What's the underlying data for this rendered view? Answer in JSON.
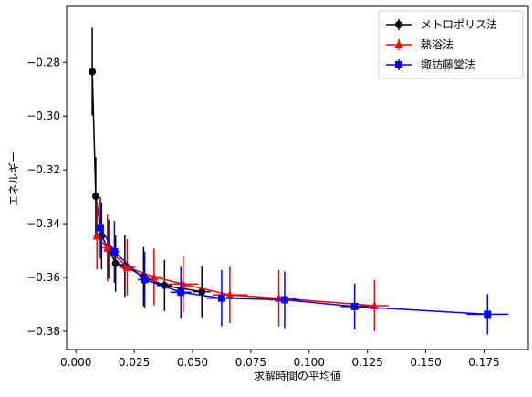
{
  "chart_data": {
    "type": "line",
    "title": "",
    "xlabel": "求解時間の平均値",
    "ylabel": "エネルギー",
    "xlim": [
      -0.004,
      0.194
    ],
    "ylim": [
      -0.3868,
      -0.2592
    ],
    "xticks": [
      0.0,
      0.025,
      0.05,
      0.075,
      0.1,
      0.125,
      0.15,
      0.175
    ],
    "xtick_labels": [
      "0.000",
      "0.025",
      "0.050",
      "0.075",
      "0.100",
      "0.125",
      "0.150",
      "0.175"
    ],
    "yticks": [
      -0.28,
      -0.3,
      -0.32,
      -0.34,
      -0.36,
      -0.38
    ],
    "ytick_labels": [
      "−0.28",
      "−0.30",
      "−0.32",
      "−0.34",
      "−0.36",
      "−0.38"
    ],
    "grid": false,
    "legend_position": "top-right",
    "series": [
      {
        "name": "メトロポリス法",
        "color": "#000000",
        "marker": "circle",
        "x": [
          0.007,
          0.0085,
          0.011,
          0.014,
          0.017,
          0.021,
          0.029,
          0.038,
          0.054
        ],
        "y": [
          -0.2835,
          -0.3298,
          -0.3445,
          -0.3495,
          -0.3548,
          -0.3557,
          -0.3597,
          -0.363,
          -0.3653
        ],
        "yerr": [
          0.0163,
          0.0145,
          0.0125,
          0.011,
          0.0105,
          0.0115,
          0.011,
          0.0095,
          0.0095
        ],
        "xerr": [
          0.0012,
          0.001,
          0.0014,
          0.0015,
          0.0015,
          0.0018,
          0.0022,
          0.0032,
          0.0038
        ]
      },
      {
        "name": "熱浴法",
        "color": "#ff0000",
        "marker": "triangle",
        "x": [
          0.009,
          0.0135,
          0.022,
          0.0335,
          0.046,
          0.066,
          0.087,
          0.128
        ],
        "y": [
          -0.3445,
          -0.349,
          -0.3562,
          -0.3598,
          -0.3625,
          -0.3665,
          -0.3677,
          -0.3705
        ],
        "yerr": [
          0.0125,
          0.0125,
          0.0105,
          0.0105,
          0.0105,
          0.0105,
          0.0105,
          0.0095
        ],
        "xerr": [
          0.0015,
          0.0025,
          0.0035,
          0.0045,
          0.0065,
          0.0075,
          0.0075,
          0.006
        ]
      },
      {
        "name": "諏訪藤堂法",
        "color": "#0000ff",
        "marker": "square",
        "x": [
          0.0105,
          0.0165,
          0.0295,
          0.045,
          0.0625,
          0.0895,
          0.1195,
          0.1765
        ],
        "y": [
          -0.3415,
          -0.3505,
          -0.3608,
          -0.3655,
          -0.3677,
          -0.3683,
          -0.3708,
          -0.3737
        ],
        "yerr": [
          0.0115,
          0.0115,
          0.0105,
          0.0095,
          0.0105,
          0.0105,
          0.0085,
          0.0075
        ],
        "xerr": [
          0.0015,
          0.002,
          0.003,
          0.0045,
          0.0065,
          0.0065,
          0.006,
          0.009
        ]
      }
    ]
  }
}
